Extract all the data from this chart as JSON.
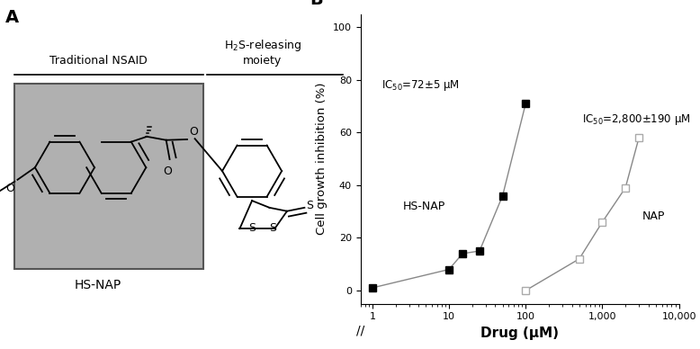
{
  "panel_b": {
    "hsnap_x": [
      1,
      10,
      15,
      25,
      50,
      100
    ],
    "hsnap_y": [
      1,
      8,
      14,
      15,
      36,
      71
    ],
    "nap_x": [
      100,
      500,
      1000,
      2000,
      3000
    ],
    "nap_y": [
      0,
      12,
      26,
      39,
      58
    ],
    "xlabel": "Drug (μM)",
    "ylabel": "Cell growth inhibition (%)",
    "ylim": [
      -5,
      105
    ],
    "xlim_log": [
      0.7,
      10000
    ],
    "xticks": [
      1,
      10,
      100,
      1000,
      10000
    ],
    "xticklabels": [
      "1",
      "10",
      "100",
      "1,000",
      "10,000"
    ],
    "yticks": [
      0,
      20,
      40,
      60,
      80,
      100
    ],
    "ic50_hsnap_text": "IC$_{50}$=72±5 μM",
    "ic50_nap_text": "IC$_{50}$=2,800±190 μM",
    "hsnap_label": "HS-NAP",
    "nap_label": "NAP",
    "panel_label": "B",
    "line_color": "#888888",
    "hsnap_marker_color": "#000000",
    "nap_marker_color": "#aaaaaa"
  },
  "panel_a": {
    "panel_label": "A",
    "traditional_nsaid_text": "Traditional NSAID",
    "h2s_releasing_text": "H$_2$S-releasing\nmoiety",
    "hsnap_label": "HS-NAP",
    "box_facecolor": "#b0b0b0",
    "box_edgecolor": "#555555"
  }
}
